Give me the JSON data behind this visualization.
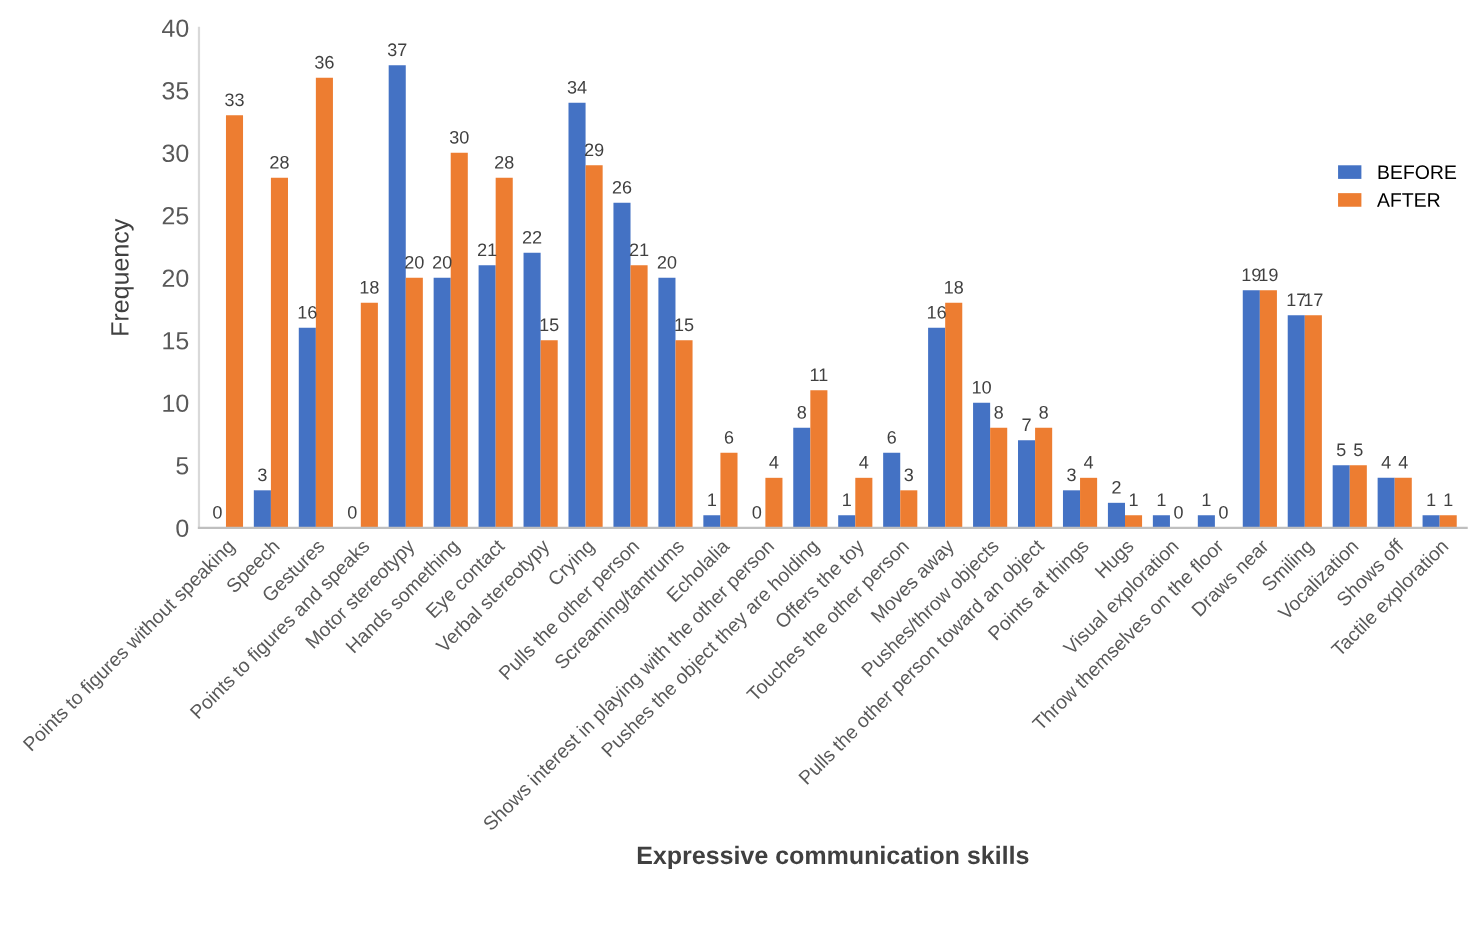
{
  "chart_data": {
    "type": "bar",
    "xlabel": "Expressive communication skills",
    "ylabel": "Frequency",
    "categories": [
      "Points to figures without speaking",
      "Speech",
      "Gestures",
      "Points to figures and speaks",
      "Motor stereotypy",
      "Hands something",
      "Eye contact",
      "Verbal stereotypy",
      "Crying",
      "Pulls the other person",
      "Screaming/tantrums",
      "Echolalia",
      "Shows interest in playing with the other person",
      "Pushes the object they are holding",
      "Offers the toy",
      "Touches the other person",
      "Moves away",
      "Pushes/throw objects",
      "Pulls the other person toward an object",
      "Points at things",
      "Hugs",
      "Visual exploration",
      "Throw themselves on the floor",
      "Draws near",
      "Smiling",
      "Vocalization",
      "Shows off",
      "Tactile exploration"
    ],
    "series": [
      {
        "name": "BEFORE",
        "color": "#4472c4",
        "values": [
          0,
          3,
          16,
          0,
          37,
          20,
          21,
          22,
          34,
          26,
          20,
          1,
          0,
          8,
          1,
          6,
          16,
          10,
          7,
          3,
          2,
          1,
          1,
          19,
          17,
          5,
          4,
          1
        ]
      },
      {
        "name": "AFTER",
        "color": "#ed7d31",
        "values": [
          33,
          28,
          36,
          18,
          20,
          30,
          28,
          15,
          29,
          21,
          15,
          6,
          4,
          11,
          4,
          3,
          18,
          8,
          8,
          4,
          1,
          0,
          0,
          19,
          17,
          5,
          4,
          1
        ]
      }
    ],
    "ylim": [
      0,
      40
    ],
    "yticks": [
      0,
      5,
      10,
      15,
      20,
      25,
      30,
      35,
      40
    ],
    "grid": false,
    "legend": "right",
    "data_labels": true
  }
}
